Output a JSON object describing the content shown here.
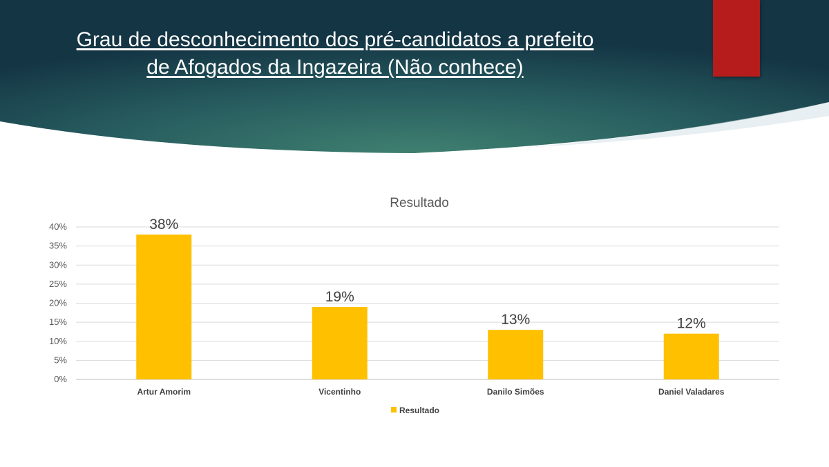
{
  "slide": {
    "title_line1": "Grau de desconhecimento dos pré-candidatos a prefeito",
    "title_line2": "de Afogados da Ingazeira (Não conhece)",
    "colors": {
      "header_dark": "#163a4a",
      "header_mid": "#2f6b66",
      "accent": "#b71c1c",
      "bar": "#ffc000"
    }
  },
  "chart_data": {
    "type": "bar",
    "title": "Resultado",
    "categories": [
      "Artur Amorim",
      "Vicentinho",
      "Danilo Simões",
      "Daniel Valadares"
    ],
    "series": [
      {
        "name": "Resultado",
        "values": [
          38,
          19,
          13,
          12
        ]
      }
    ],
    "data_labels": [
      "38%",
      "19%",
      "13%",
      "12%"
    ],
    "y_ticks": [
      "0%",
      "5%",
      "10%",
      "15%",
      "20%",
      "25%",
      "30%",
      "35%",
      "40%"
    ],
    "ylim": [
      0,
      40
    ],
    "grid": true,
    "legend": "bottom"
  }
}
